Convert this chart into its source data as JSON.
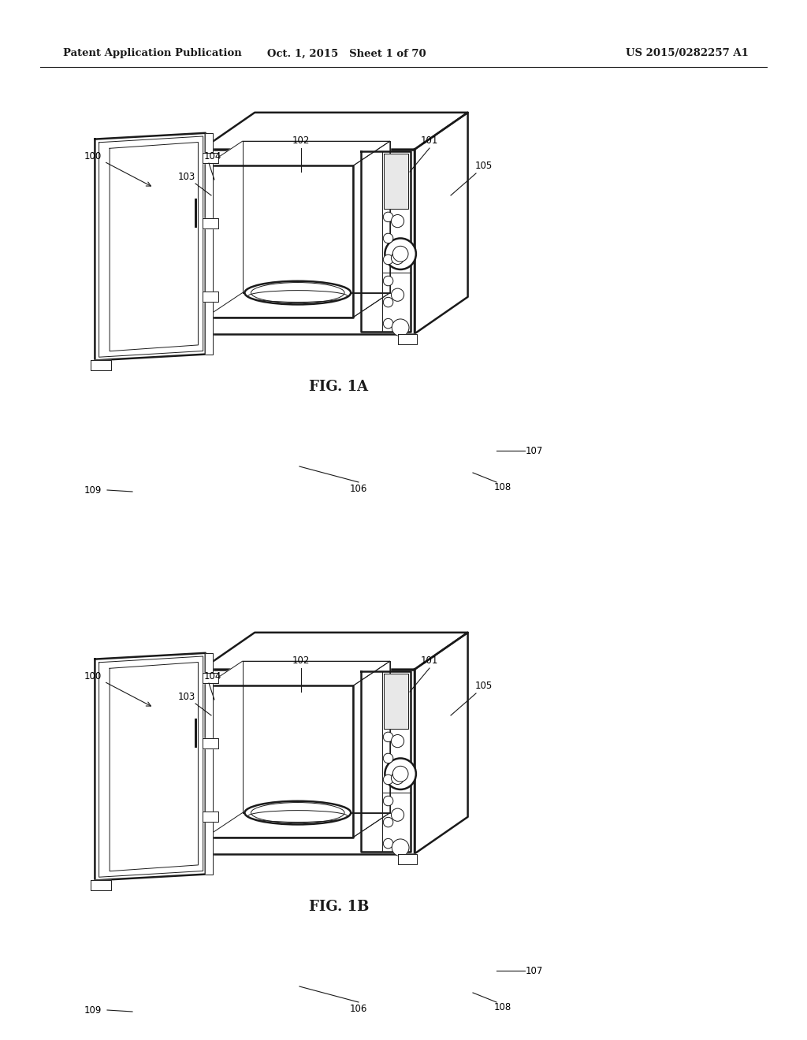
{
  "bg_color": "#ffffff",
  "line_color": "#1a1a1a",
  "header_left": "Patent Application Publication",
  "header_mid": "Oct. 1, 2015   Sheet 1 of 70",
  "header_right": "US 2015/0282257 A1",
  "fig1a_label": "FIG. 1A",
  "fig1b_label": "FIG. 1B"
}
